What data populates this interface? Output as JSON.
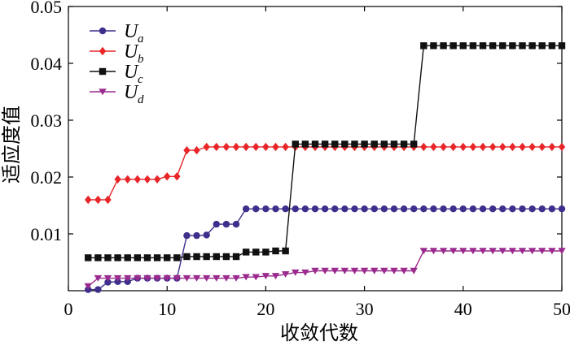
{
  "chart_data": {
    "type": "line",
    "title": "",
    "xlabel": "收敛代数",
    "ylabel": "适应度值",
    "xlim": [
      0,
      50
    ],
    "ylim": [
      0,
      0.05
    ],
    "x_ticks": [
      "0",
      "10",
      "20",
      "30",
      "40",
      "50"
    ],
    "y_ticks": [
      "0.01",
      "0.02",
      "0.03",
      "0.04",
      "0.05"
    ],
    "grid": false,
    "legend_position": "top-left",
    "x": [
      2,
      3,
      4,
      5,
      6,
      7,
      8,
      9,
      10,
      11,
      12,
      13,
      14,
      15,
      16,
      17,
      18,
      19,
      20,
      21,
      22,
      23,
      24,
      25,
      26,
      27,
      28,
      29,
      30,
      31,
      32,
      33,
      34,
      35,
      36,
      37,
      38,
      39,
      40,
      41,
      42,
      43,
      44,
      45,
      46,
      47,
      48,
      49,
      50
    ],
    "series": [
      {
        "name": "U",
        "subscript": "a",
        "color": "#3f2f8c",
        "marker": "circle",
        "values": [
          0.0002,
          0.0002,
          0.0015,
          0.0016,
          0.0016,
          0.0022,
          0.0022,
          0.0022,
          0.0022,
          0.0022,
          0.0097,
          0.0097,
          0.0098,
          0.0117,
          0.0117,
          0.0117,
          0.0144,
          0.0144,
          0.0144,
          0.0144,
          0.0144,
          0.0144,
          0.0144,
          0.0144,
          0.0144,
          0.0144,
          0.0144,
          0.0144,
          0.0144,
          0.0144,
          0.0144,
          0.0144,
          0.0144,
          0.0144,
          0.0144,
          0.0144,
          0.0144,
          0.0144,
          0.0144,
          0.0144,
          0.0144,
          0.0144,
          0.0144,
          0.0144,
          0.0144,
          0.0144,
          0.0144,
          0.0144,
          0.0144
        ]
      },
      {
        "name": "U",
        "subscript": "b",
        "color": "#e8262a",
        "marker": "diamond",
        "values": [
          0.016,
          0.016,
          0.016,
          0.0196,
          0.0196,
          0.0196,
          0.0196,
          0.0196,
          0.0201,
          0.0201,
          0.0247,
          0.0247,
          0.0253,
          0.0253,
          0.0253,
          0.0253,
          0.0253,
          0.0253,
          0.0253,
          0.0253,
          0.0253,
          0.0253,
          0.0253,
          0.0253,
          0.0253,
          0.0253,
          0.0253,
          0.0253,
          0.0253,
          0.0253,
          0.0253,
          0.0253,
          0.0253,
          0.0253,
          0.0253,
          0.0253,
          0.0253,
          0.0253,
          0.0253,
          0.0253,
          0.0253,
          0.0253,
          0.0253,
          0.0253,
          0.0253,
          0.0253,
          0.0253,
          0.0253,
          0.0253
        ]
      },
      {
        "name": "U",
        "subscript": "c",
        "color": "#111111",
        "marker": "square",
        "values": [
          0.0058,
          0.0058,
          0.0058,
          0.0058,
          0.0058,
          0.0058,
          0.0058,
          0.0058,
          0.0058,
          0.0058,
          0.006,
          0.006,
          0.006,
          0.006,
          0.006,
          0.006,
          0.0068,
          0.0068,
          0.0068,
          0.007,
          0.007,
          0.0258,
          0.0258,
          0.0258,
          0.0258,
          0.0258,
          0.0258,
          0.0258,
          0.0258,
          0.0258,
          0.0258,
          0.0258,
          0.0258,
          0.0258,
          0.0431,
          0.0431,
          0.0431,
          0.0431,
          0.0431,
          0.0431,
          0.0431,
          0.0431,
          0.0431,
          0.0431,
          0.0431,
          0.0431,
          0.0431,
          0.0431,
          0.0431
        ]
      },
      {
        "name": "U",
        "subscript": "d",
        "color": "#9b2a8f",
        "marker": "triangle-down",
        "values": [
          0.0008,
          0.0022,
          0.0022,
          0.0022,
          0.0022,
          0.0022,
          0.0022,
          0.0022,
          0.0022,
          0.0022,
          0.0022,
          0.0022,
          0.0022,
          0.0022,
          0.0022,
          0.0022,
          0.0024,
          0.0024,
          0.0026,
          0.0026,
          0.0029,
          0.0032,
          0.0032,
          0.0035,
          0.0035,
          0.0035,
          0.0035,
          0.0035,
          0.0035,
          0.0035,
          0.0035,
          0.0035,
          0.0035,
          0.0035,
          0.007,
          0.007,
          0.007,
          0.007,
          0.007,
          0.007,
          0.007,
          0.007,
          0.007,
          0.007,
          0.007,
          0.007,
          0.007,
          0.007,
          0.007
        ]
      }
    ]
  }
}
